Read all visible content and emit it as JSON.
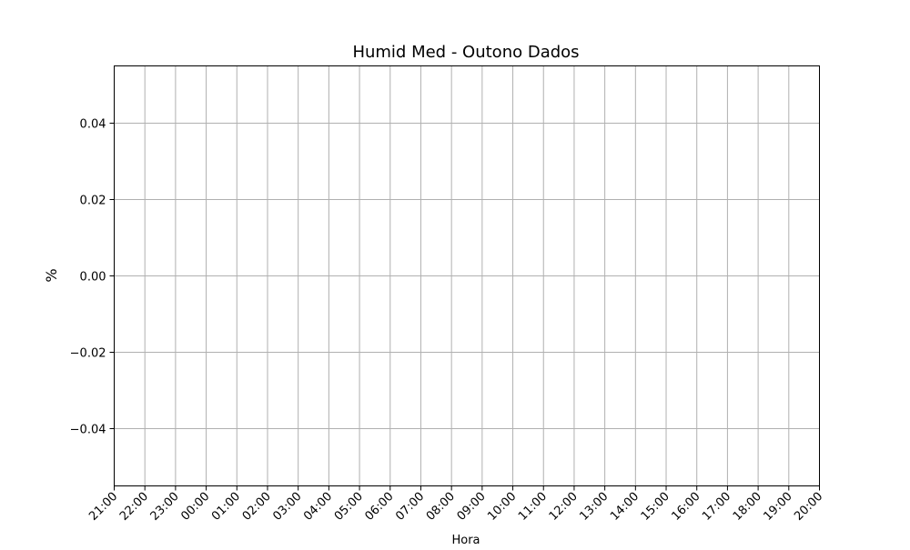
{
  "chart_data": {
    "type": "line",
    "title": "Humid Med - Outono Dados",
    "xlabel": "Hora",
    "ylabel": "%",
    "x_ticks": [
      "21:00",
      "22:00",
      "23:00",
      "00:00",
      "01:00",
      "02:00",
      "03:00",
      "04:00",
      "05:00",
      "06:00",
      "07:00",
      "08:00",
      "09:00",
      "10:00",
      "11:00",
      "12:00",
      "13:00",
      "14:00",
      "15:00",
      "16:00",
      "17:00",
      "18:00",
      "19:00",
      "20:00"
    ],
    "y_ticks": [
      -0.04,
      -0.02,
      0.0,
      0.02,
      0.04
    ],
    "y_tick_labels": [
      "−0.04",
      "−0.02",
      "0.00",
      "0.02",
      "0.04"
    ],
    "ylim": [
      -0.055,
      0.055
    ],
    "grid": true,
    "series": []
  }
}
